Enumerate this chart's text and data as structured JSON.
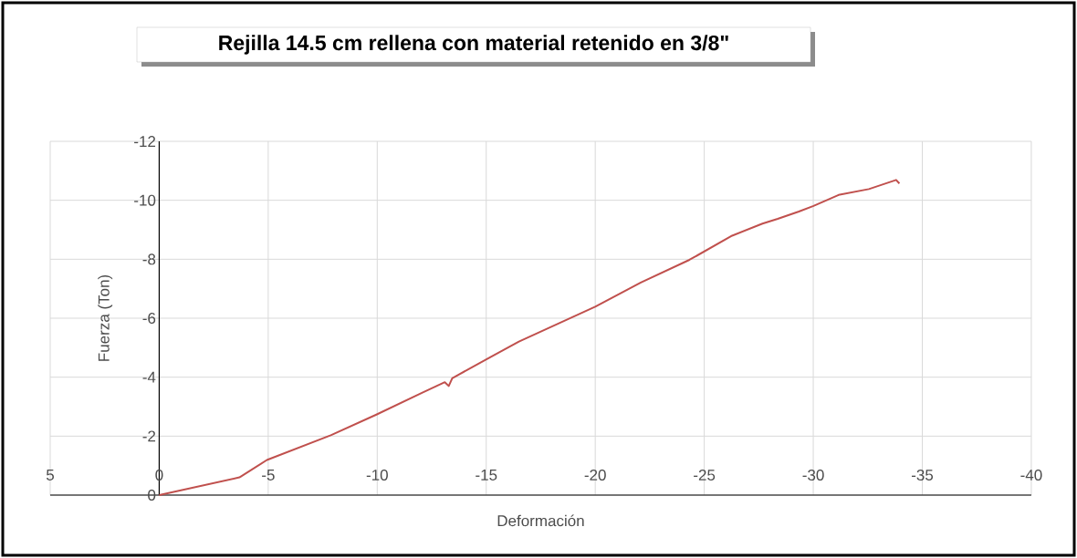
{
  "chart_data": {
    "type": "line",
    "title": "Rejilla 14.5 cm rellena con material retenido en 3/8\"",
    "xlabel": "Deformación",
    "ylabel": "Fuerza (Ton)",
    "xlim": [
      5,
      -40
    ],
    "ylim": [
      0,
      -12
    ],
    "xticks": [
      5,
      0,
      -5,
      -10,
      -15,
      -20,
      -25,
      -30,
      -35,
      -40
    ],
    "yticks": [
      0,
      -2,
      -4,
      -6,
      -8,
      -10,
      -12
    ],
    "grid": true,
    "marker": "none",
    "line_style": "solid",
    "series": [
      {
        "color": "#c0504d",
        "x": [
          0,
          -3.68,
          -4.94,
          -7.87,
          -9.96,
          -12.05,
          -13.1,
          -13.28,
          -13.44,
          -13.72,
          -15.12,
          -16.5,
          -20.0,
          -22.09,
          -24.32,
          -26.28,
          -27.67,
          -28.37,
          -29.34,
          -30.01,
          -31.16,
          -32.55,
          -33.8,
          -33.95
        ],
        "values": [
          0,
          -0.6,
          -1.19,
          -2.03,
          -2.73,
          -3.47,
          -3.83,
          -3.7,
          -3.96,
          -4.08,
          -4.65,
          -5.21,
          -6.39,
          -7.21,
          -7.98,
          -8.8,
          -9.21,
          -9.37,
          -9.62,
          -9.81,
          -10.18,
          -10.38,
          -10.69,
          -10.57
        ]
      }
    ]
  }
}
